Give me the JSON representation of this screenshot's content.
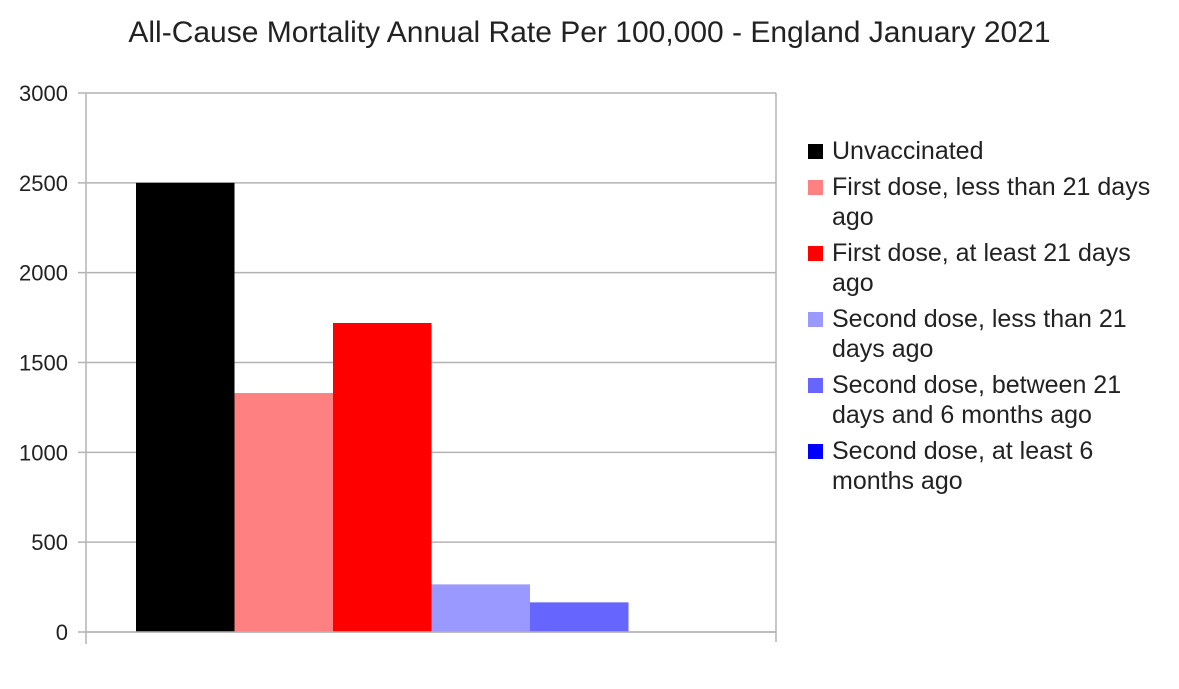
{
  "chart_data": {
    "type": "bar",
    "title": "All-Cause Mortality Annual Rate Per 100,000 - England January 2021",
    "xlabel": "",
    "ylabel": "",
    "ylim": [
      0,
      3000
    ],
    "yticks": [
      0,
      500,
      1000,
      1500,
      2000,
      2500,
      3000
    ],
    "grid": true,
    "legend_position": "right",
    "categories": [
      ""
    ],
    "series": [
      {
        "name": "Unvaccinated",
        "values": [
          2500
        ],
        "color": "#000000"
      },
      {
        "name": "First dose, less than 21 days ago",
        "values": [
          1330
        ],
        "color": "#ff8080"
      },
      {
        "name": "First dose, at least 21 days ago",
        "values": [
          1720
        ],
        "color": "#ff0000"
      },
      {
        "name": "Second dose, less than 21 days ago",
        "values": [
          265
        ],
        "color": "#9999ff"
      },
      {
        "name": "Second dose, between 21 days and 6 months ago",
        "values": [
          165
        ],
        "color": "#6666ff"
      },
      {
        "name": "Second dose, at least 6 months ago",
        "values": [
          0
        ],
        "color": "#0000ff"
      }
    ]
  }
}
